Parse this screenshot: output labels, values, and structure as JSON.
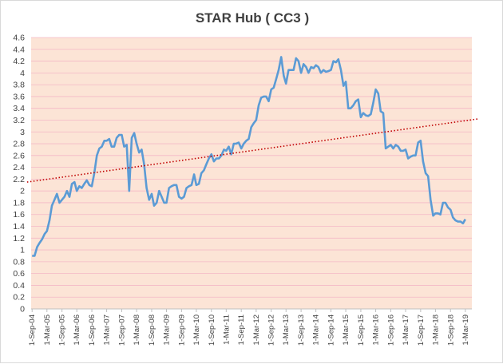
{
  "chart_data": {
    "type": "line",
    "title": "STAR Hub ( CC3 )",
    "xlabel": "",
    "ylabel": "",
    "ylim": [
      0,
      4.6
    ],
    "y_ticks": [
      0,
      0.2,
      0.4,
      0.6,
      0.8,
      1,
      1.2,
      1.4,
      1.6,
      1.8,
      2,
      2.2,
      2.4,
      2.6,
      2.8,
      3,
      3.2,
      3.4,
      3.6,
      3.8,
      4,
      4.2,
      4.4,
      4.6
    ],
    "y_tick_labels": [
      "0",
      "0.2",
      "0.4",
      "0.6",
      "0.8",
      "1",
      "1.2",
      "1.4",
      "1.6",
      "1.8",
      "2",
      "2.2",
      "2.4",
      "2.6",
      "2.8",
      "3",
      "3.2",
      "3.4",
      "3.6",
      "3.8",
      "4",
      "4.2",
      "4.4",
      "4.6"
    ],
    "x_tick_labels": [
      "1-Sep-04",
      "1-Mar-05",
      "1-Sep-05",
      "1-Mar-06",
      "1-Sep-06",
      "1-Mar-07",
      "1-Sep-07",
      "1-Mar-08",
      "1-Sep-08",
      "1-Mar-09",
      "1-Sep-09",
      "1-Mar-10",
      "1-Sep-10",
      "1-Mar-11",
      "1-Sep-11",
      "1-Mar-12",
      "1-Sep-12",
      "1-Mar-13",
      "1-Sep-13",
      "1-Mar-14",
      "1-Sep-14",
      "1-Mar-15",
      "1-Sep-15",
      "1-Mar-16",
      "1-Sep-16",
      "1-Mar-17",
      "1-Sep-17",
      "1-Mar-18",
      "1-Sep-18",
      "1-Mar-19"
    ],
    "grid": true,
    "plot_background": "#fce4d6",
    "grid_color": "#f4b8c6",
    "series": [
      {
        "color": "#5b9bd5",
        "style": "solid",
        "points": [
          [
            "2004-09-01",
            0.9
          ],
          [
            "2004-10-01",
            0.9
          ],
          [
            "2004-11-01",
            1.05
          ],
          [
            "2004-12-01",
            1.12
          ],
          [
            "2005-01-01",
            1.18
          ],
          [
            "2005-02-01",
            1.27
          ],
          [
            "2005-03-01",
            1.32
          ],
          [
            "2005-04-01",
            1.5
          ],
          [
            "2005-05-01",
            1.75
          ],
          [
            "2005-06-01",
            1.85
          ],
          [
            "2005-07-01",
            1.95
          ],
          [
            "2005-08-01",
            1.8
          ],
          [
            "2005-09-01",
            1.85
          ],
          [
            "2005-10-01",
            1.9
          ],
          [
            "2005-11-01",
            2.0
          ],
          [
            "2005-12-01",
            1.9
          ],
          [
            "2006-01-01",
            2.12
          ],
          [
            "2006-02-01",
            2.15
          ],
          [
            "2006-03-01",
            2.0
          ],
          [
            "2006-04-01",
            2.08
          ],
          [
            "2006-05-01",
            2.05
          ],
          [
            "2006-06-01",
            2.12
          ],
          [
            "2006-07-01",
            2.18
          ],
          [
            "2006-08-01",
            2.1
          ],
          [
            "2006-09-01",
            2.08
          ],
          [
            "2006-10-01",
            2.3
          ],
          [
            "2006-11-01",
            2.6
          ],
          [
            "2006-12-01",
            2.72
          ],
          [
            "2007-01-01",
            2.75
          ],
          [
            "2007-02-01",
            2.85
          ],
          [
            "2007-03-01",
            2.85
          ],
          [
            "2007-04-01",
            2.88
          ],
          [
            "2007-05-01",
            2.75
          ],
          [
            "2007-06-01",
            2.75
          ],
          [
            "2007-07-01",
            2.9
          ],
          [
            "2007-08-01",
            2.95
          ],
          [
            "2007-09-01",
            2.95
          ],
          [
            "2007-10-01",
            2.75
          ],
          [
            "2007-11-01",
            2.78
          ],
          [
            "2007-12-01",
            2.0
          ],
          [
            "2008-01-01",
            2.9
          ],
          [
            "2008-02-01",
            2.98
          ],
          [
            "2008-03-01",
            2.8
          ],
          [
            "2008-04-01",
            2.65
          ],
          [
            "2008-05-01",
            2.7
          ],
          [
            "2008-06-01",
            2.45
          ],
          [
            "2008-07-01",
            2.05
          ],
          [
            "2008-08-01",
            1.85
          ],
          [
            "2008-09-01",
            1.95
          ],
          [
            "2008-10-01",
            1.75
          ],
          [
            "2008-11-01",
            1.8
          ],
          [
            "2008-12-01",
            2.0
          ],
          [
            "2009-01-01",
            1.9
          ],
          [
            "2009-02-01",
            1.8
          ],
          [
            "2009-03-01",
            1.8
          ],
          [
            "2009-04-01",
            2.05
          ],
          [
            "2009-05-01",
            2.08
          ],
          [
            "2009-06-01",
            2.1
          ],
          [
            "2009-07-01",
            2.1
          ],
          [
            "2009-08-01",
            1.9
          ],
          [
            "2009-09-01",
            1.87
          ],
          [
            "2009-10-01",
            1.9
          ],
          [
            "2009-11-01",
            2.05
          ],
          [
            "2009-12-01",
            2.08
          ],
          [
            "2010-01-01",
            2.1
          ],
          [
            "2010-02-01",
            2.28
          ],
          [
            "2010-03-01",
            2.1
          ],
          [
            "2010-04-01",
            2.12
          ],
          [
            "2010-05-01",
            2.3
          ],
          [
            "2010-06-01",
            2.35
          ],
          [
            "2010-07-01",
            2.45
          ],
          [
            "2010-08-01",
            2.55
          ],
          [
            "2010-09-01",
            2.62
          ],
          [
            "2010-10-01",
            2.5
          ],
          [
            "2010-11-01",
            2.55
          ],
          [
            "2010-12-01",
            2.55
          ],
          [
            "2011-01-01",
            2.6
          ],
          [
            "2011-02-01",
            2.7
          ],
          [
            "2011-03-01",
            2.68
          ],
          [
            "2011-04-01",
            2.75
          ],
          [
            "2011-05-01",
            2.62
          ],
          [
            "2011-06-01",
            2.8
          ],
          [
            "2011-07-01",
            2.8
          ],
          [
            "2011-08-01",
            2.82
          ],
          [
            "2011-09-01",
            2.72
          ],
          [
            "2011-10-01",
            2.8
          ],
          [
            "2011-11-01",
            2.85
          ],
          [
            "2011-12-01",
            2.88
          ],
          [
            "2012-01-01",
            3.08
          ],
          [
            "2012-02-01",
            3.15
          ],
          [
            "2012-03-01",
            3.2
          ],
          [
            "2012-04-01",
            3.45
          ],
          [
            "2012-05-01",
            3.58
          ],
          [
            "2012-06-01",
            3.6
          ],
          [
            "2012-07-01",
            3.6
          ],
          [
            "2012-08-01",
            3.52
          ],
          [
            "2012-09-01",
            3.72
          ],
          [
            "2012-10-01",
            3.75
          ],
          [
            "2012-11-01",
            3.9
          ],
          [
            "2012-12-01",
            4.05
          ],
          [
            "2013-01-01",
            4.27
          ],
          [
            "2013-02-01",
            3.95
          ],
          [
            "2013-03-01",
            3.82
          ],
          [
            "2013-04-01",
            4.05
          ],
          [
            "2013-05-01",
            4.05
          ],
          [
            "2013-06-01",
            4.05
          ],
          [
            "2013-07-01",
            4.25
          ],
          [
            "2013-08-01",
            4.2
          ],
          [
            "2013-09-01",
            4.0
          ],
          [
            "2013-10-01",
            4.15
          ],
          [
            "2013-11-01",
            4.1
          ],
          [
            "2013-12-01",
            4.0
          ],
          [
            "2014-01-01",
            4.1
          ],
          [
            "2014-02-01",
            4.08
          ],
          [
            "2014-03-01",
            4.13
          ],
          [
            "2014-04-01",
            4.1
          ],
          [
            "2014-05-01",
            4.0
          ],
          [
            "2014-06-01",
            4.05
          ],
          [
            "2014-07-01",
            4.02
          ],
          [
            "2014-08-01",
            4.03
          ],
          [
            "2014-09-01",
            4.05
          ],
          [
            "2014-10-01",
            4.2
          ],
          [
            "2014-11-01",
            4.18
          ],
          [
            "2014-12-01",
            4.23
          ],
          [
            "2015-01-01",
            4.05
          ],
          [
            "2015-02-01",
            3.78
          ],
          [
            "2015-03-01",
            3.85
          ],
          [
            "2015-04-01",
            3.4
          ],
          [
            "2015-05-01",
            3.4
          ],
          [
            "2015-06-01",
            3.45
          ],
          [
            "2015-07-01",
            3.52
          ],
          [
            "2015-08-01",
            3.55
          ],
          [
            "2015-09-01",
            3.25
          ],
          [
            "2015-10-01",
            3.32
          ],
          [
            "2015-11-01",
            3.28
          ],
          [
            "2015-12-01",
            3.27
          ],
          [
            "2016-01-01",
            3.3
          ],
          [
            "2016-02-01",
            3.5
          ],
          [
            "2016-03-01",
            3.72
          ],
          [
            "2016-04-01",
            3.65
          ],
          [
            "2016-05-01",
            3.35
          ],
          [
            "2016-06-01",
            3.32
          ],
          [
            "2016-07-01",
            2.72
          ],
          [
            "2016-08-01",
            2.75
          ],
          [
            "2016-09-01",
            2.78
          ],
          [
            "2016-10-01",
            2.72
          ],
          [
            "2016-11-01",
            2.78
          ],
          [
            "2016-12-01",
            2.75
          ],
          [
            "2017-01-01",
            2.68
          ],
          [
            "2017-02-01",
            2.68
          ],
          [
            "2017-03-01",
            2.7
          ],
          [
            "2017-04-01",
            2.55
          ],
          [
            "2017-05-01",
            2.58
          ],
          [
            "2017-06-01",
            2.6
          ],
          [
            "2017-07-01",
            2.6
          ],
          [
            "2017-08-01",
            2.82
          ],
          [
            "2017-09-01",
            2.85
          ],
          [
            "2017-10-01",
            2.5
          ],
          [
            "2017-11-01",
            2.3
          ],
          [
            "2017-12-01",
            2.25
          ],
          [
            "2018-01-01",
            1.85
          ],
          [
            "2018-02-01",
            1.58
          ],
          [
            "2018-03-01",
            1.62
          ],
          [
            "2018-04-01",
            1.62
          ],
          [
            "2018-05-01",
            1.6
          ],
          [
            "2018-06-01",
            1.8
          ],
          [
            "2018-07-01",
            1.8
          ],
          [
            "2018-08-01",
            1.72
          ],
          [
            "2018-09-01",
            1.68
          ],
          [
            "2018-10-01",
            1.55
          ],
          [
            "2018-11-01",
            1.5
          ],
          [
            "2018-12-01",
            1.48
          ],
          [
            "2019-01-01",
            1.48
          ],
          [
            "2019-02-01",
            1.45
          ],
          [
            "2019-03-01",
            1.52
          ]
        ]
      },
      {
        "color": "#c00000",
        "style": "dotted-linear-trendline",
        "points": [
          [
            "2004-07-01",
            2.15
          ],
          [
            "2019-08-01",
            3.22
          ]
        ]
      }
    ]
  }
}
